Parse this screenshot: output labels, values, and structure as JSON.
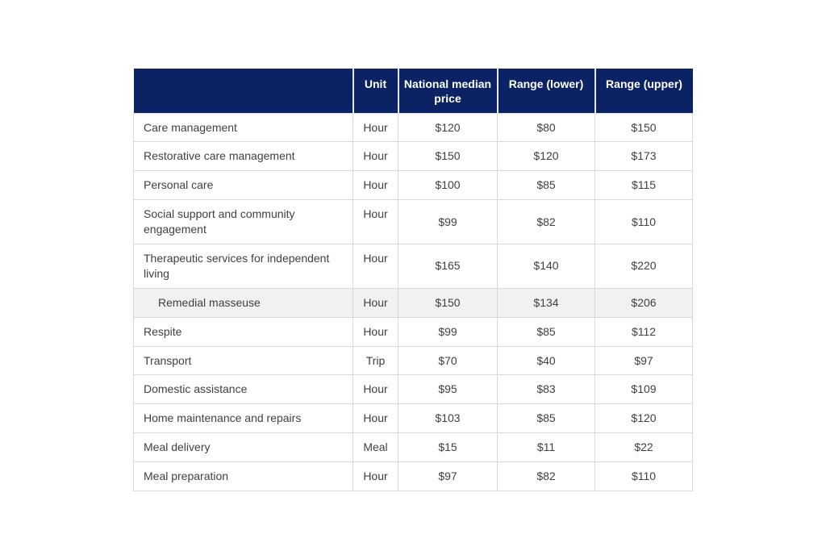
{
  "table": {
    "header": {
      "columns": [
        "",
        "Unit",
        "National median price",
        "Range (lower)",
        "Range (upper)"
      ]
    },
    "rows": [
      {
        "service": "Care management",
        "unit": "Hour",
        "median": "$120",
        "lower": "$80",
        "upper": "$150",
        "highlighted": false,
        "indented": false
      },
      {
        "service": "Restorative care management",
        "unit": "Hour",
        "median": "$150",
        "lower": "$120",
        "upper": "$173",
        "highlighted": false,
        "indented": false
      },
      {
        "service": "Personal care",
        "unit": "Hour",
        "median": "$100",
        "lower": "$85",
        "upper": "$115",
        "highlighted": false,
        "indented": false
      },
      {
        "service": "Social support and community engagement",
        "unit": "Hour",
        "median": "$99",
        "lower": "$82",
        "upper": "$110",
        "highlighted": false,
        "indented": false
      },
      {
        "service": "Therapeutic services for independent living",
        "unit": "Hour",
        "median": "$165",
        "lower": "$140",
        "upper": "$220",
        "highlighted": false,
        "indented": false
      },
      {
        "service": "Remedial masseuse",
        "unit": "Hour",
        "median": "$150",
        "lower": "$134",
        "upper": "$206",
        "highlighted": true,
        "indented": true
      },
      {
        "service": "Respite",
        "unit": "Hour",
        "median": "$99",
        "lower": "$85",
        "upper": "$112",
        "highlighted": false,
        "indented": false
      },
      {
        "service": "Transport",
        "unit": "Trip",
        "median": "$70",
        "lower": "$40",
        "upper": "$97",
        "highlighted": false,
        "indented": false
      },
      {
        "service": "Domestic assistance",
        "unit": "Hour",
        "median": "$95",
        "lower": "$83",
        "upper": "$109",
        "highlighted": false,
        "indented": false
      },
      {
        "service": "Home maintenance and repairs",
        "unit": "Hour",
        "median": "$103",
        "lower": "$85",
        "upper": "$120",
        "highlighted": false,
        "indented": false
      },
      {
        "service": "Meal delivery",
        "unit": "Meal",
        "median": "$15",
        "lower": "$11",
        "upper": "$22",
        "highlighted": false,
        "indented": false
      },
      {
        "service": "Meal preparation",
        "unit": "Hour",
        "median": "$97",
        "lower": "$82",
        "upper": "$110",
        "highlighted": false,
        "indented": false
      }
    ],
    "colors": {
      "header_bg": "#0b2265",
      "header_text": "#ffffff",
      "body_text": "#404040",
      "border": "#d8d8d8",
      "highlight_bg": "#f1f1f1",
      "page_bg": "#ffffff"
    }
  }
}
